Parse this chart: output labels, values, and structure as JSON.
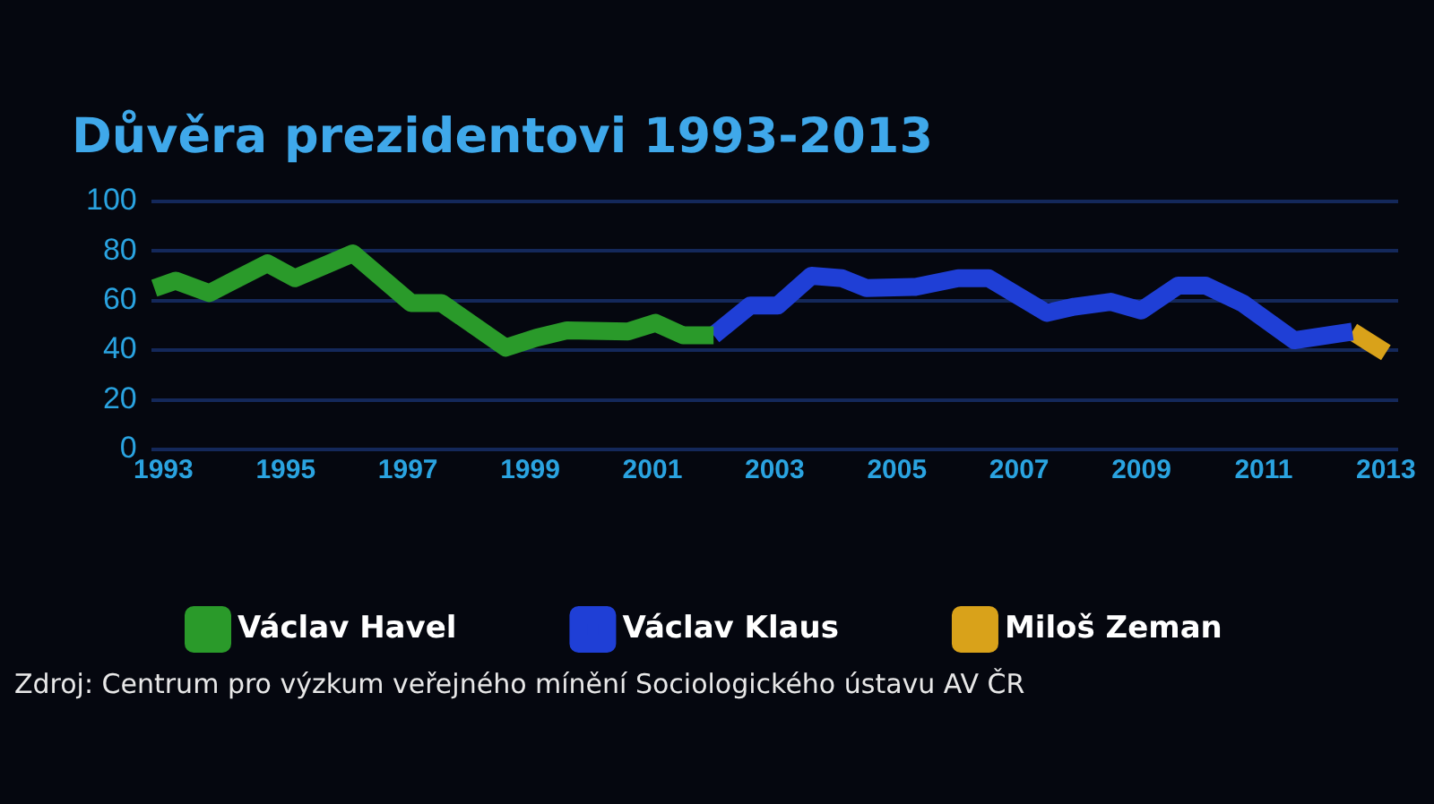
{
  "chart_data": {
    "type": "line",
    "title": "Důvěra prezidentovi 1993-2013",
    "series": [
      {
        "name": "Václav Havel",
        "color": "#2a9a2a",
        "x": [
          1992.85,
          1993.2,
          1993.75,
          1994.7,
          1995.15,
          1996.1,
          1997.05,
          1997.55,
          1998.6,
          1999.1,
          1999.6,
          2000.6,
          2001.05,
          2001.5,
          2002
        ],
        "values": [
          65,
          68,
          63,
          75,
          69,
          79,
          59,
          59,
          41,
          45,
          48,
          47.5,
          51,
          46,
          46
        ]
      },
      {
        "name": "Václav Klaus",
        "color": "#1f3fd6",
        "x": [
          2002,
          2002.6,
          2003.05,
          2003.6,
          2004.1,
          2004.5,
          2005.3,
          2006,
          2006.5,
          2007.45,
          2007.9,
          2008.5,
          2009,
          2009.6,
          2010.05,
          2010.65,
          2011.5,
          2012.45
        ],
        "values": [
          46,
          58,
          58,
          70,
          69,
          65,
          65.5,
          69,
          69,
          55,
          57.5,
          59.5,
          56,
          66,
          66,
          59,
          44,
          47.5
        ]
      },
      {
        "name": "Miloš Zeman",
        "color": "#d9a21a",
        "x": [
          2012.45,
          2013
        ],
        "values": [
          47.5,
          39
        ]
      }
    ],
    "xlim": [
      1992.8,
      2013.2
    ],
    "xticks": [
      1993,
      1995,
      1997,
      1999,
      2001,
      2003,
      2005,
      2007,
      2009,
      2011,
      2013
    ],
    "ylim": [
      0,
      100
    ],
    "yticks": [
      0,
      20,
      40,
      60,
      80,
      100
    ],
    "grid": "y",
    "legend": "bottom",
    "annotations": [
      "Zdroj: Centrum pro výzkum veřejného mínění Sociologického ústavu AV ČR"
    ]
  }
}
